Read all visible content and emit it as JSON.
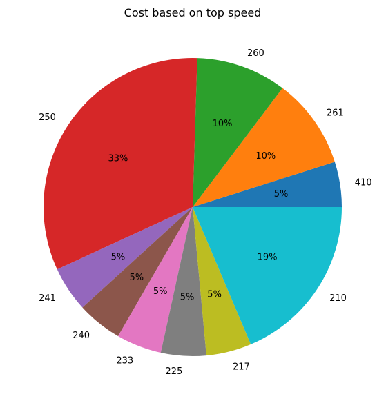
{
  "chart_data": {
    "type": "pie",
    "title": "Cost based on top speed",
    "slices": [
      {
        "label": "410",
        "value": 5,
        "pct_text": "5%",
        "color": "#1f77b4"
      },
      {
        "label": "261",
        "value": 10,
        "pct_text": "10%",
        "color": "#ff7f0e"
      },
      {
        "label": "260",
        "value": 10,
        "pct_text": "10%",
        "color": "#2ca02c"
      },
      {
        "label": "250",
        "value": 33,
        "pct_text": "33%",
        "color": "#d62728"
      },
      {
        "label": "241",
        "value": 5,
        "pct_text": "5%",
        "color": "#9467bd"
      },
      {
        "label": "240",
        "value": 5,
        "pct_text": "5%",
        "color": "#8c564b"
      },
      {
        "label": "233",
        "value": 5,
        "pct_text": "5%",
        "color": "#e377c2"
      },
      {
        "label": "225",
        "value": 5,
        "pct_text": "5%",
        "color": "#7f7f7f"
      },
      {
        "label": "217",
        "value": 5,
        "pct_text": "5%",
        "color": "#bcbd22"
      },
      {
        "label": "210",
        "value": 19,
        "pct_text": "19%",
        "color": "#17becf"
      }
    ],
    "start_angle_deg": 0,
    "direction": "counterclockwise",
    "legend": "none"
  }
}
